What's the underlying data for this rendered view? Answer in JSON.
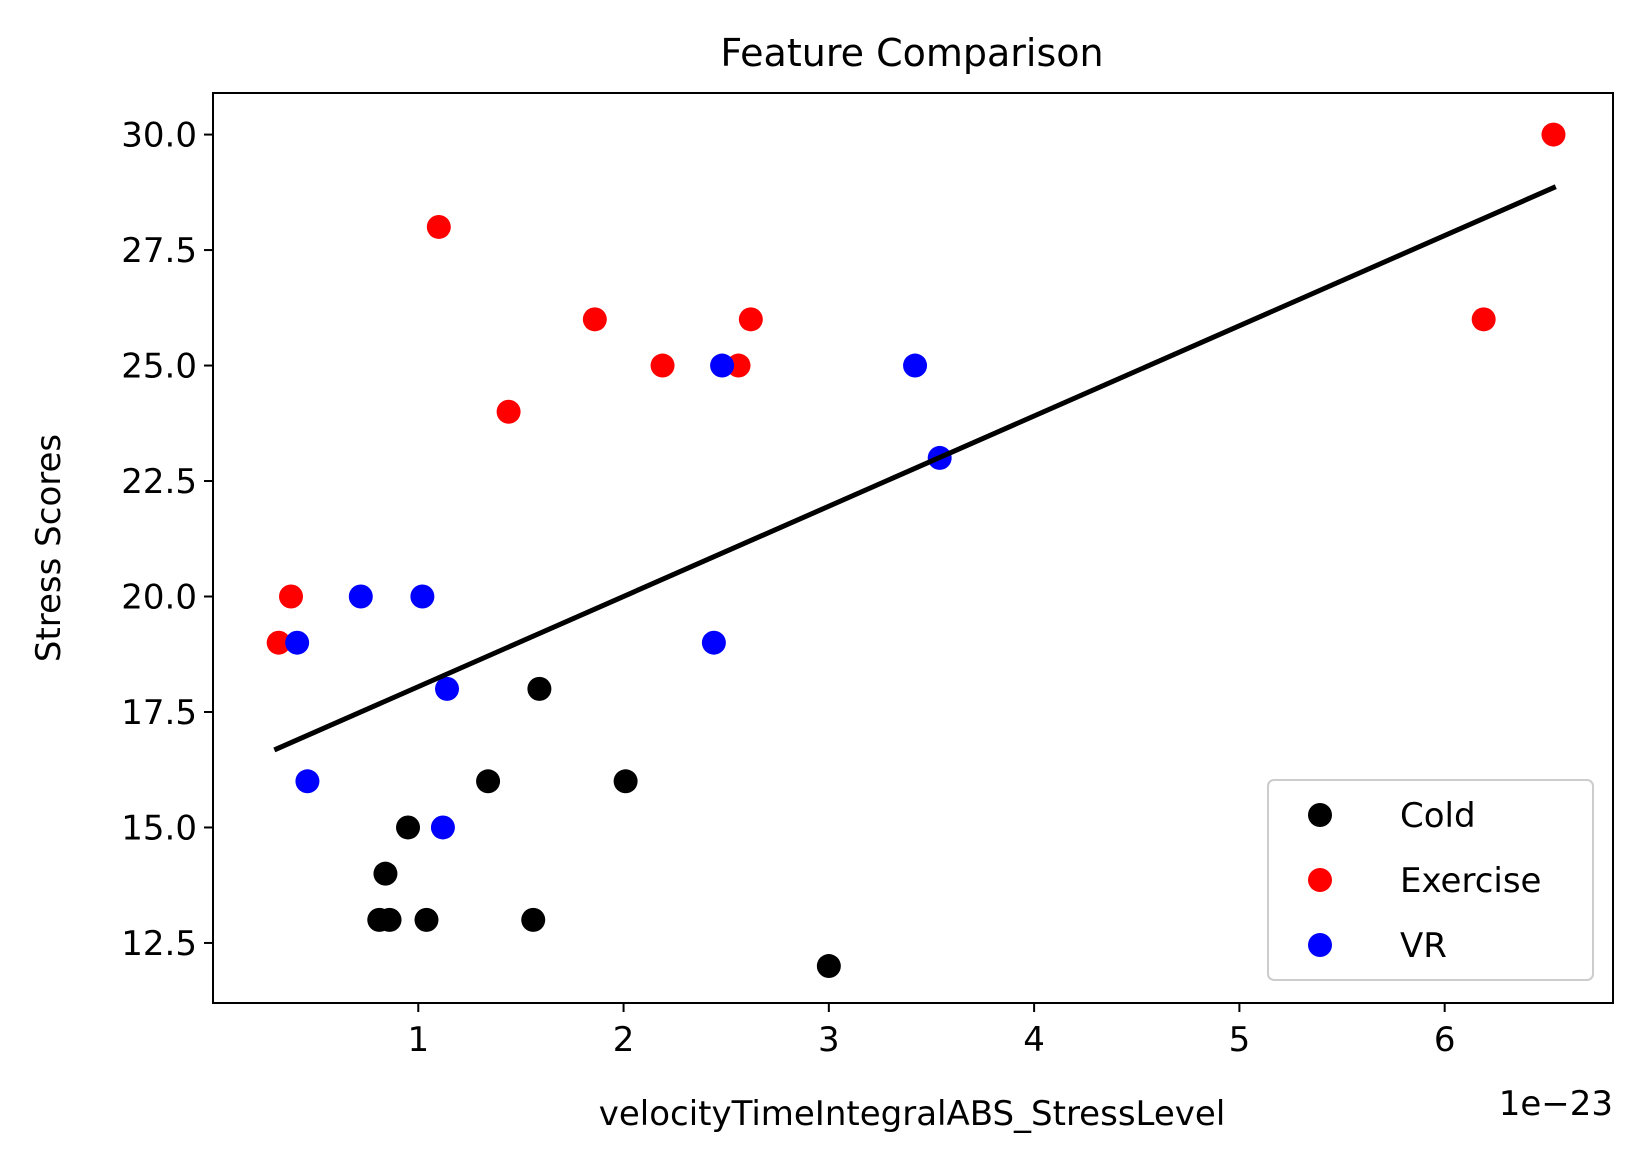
{
  "chart_data": {
    "type": "scatter",
    "title": "Feature Comparison",
    "xlabel": "velocityTimeIntegralABS_StressLevel",
    "ylabel": "Stress Scores",
    "x_offset_label": "1e−23",
    "x_scale_note": "x values shown in units of 1e-23",
    "xlim": [
      0.0,
      6.82
    ],
    "ylim": [
      11.2,
      30.9
    ],
    "x_ticks": [
      1,
      2,
      3,
      4,
      5,
      6
    ],
    "x_tick_labels": [
      "1",
      "2",
      "3",
      "4",
      "5",
      "6"
    ],
    "y_ticks": [
      12.5,
      15.0,
      17.5,
      20.0,
      22.5,
      25.0,
      27.5,
      30.0
    ],
    "y_tick_labels": [
      "12.5",
      "15.0",
      "17.5",
      "20.0",
      "22.5",
      "25.0",
      "27.5",
      "30.0"
    ],
    "grid": false,
    "legend_position": "lower-right",
    "series": [
      {
        "name": "Cold",
        "color": "#000000",
        "points": [
          [
            0.81,
            13
          ],
          [
            0.86,
            13
          ],
          [
            0.84,
            14
          ],
          [
            0.95,
            15
          ],
          [
            1.04,
            13
          ],
          [
            1.34,
            16
          ],
          [
            1.56,
            13
          ],
          [
            1.59,
            18
          ],
          [
            2.01,
            16
          ],
          [
            3.0,
            12
          ]
        ]
      },
      {
        "name": "Exercise",
        "color": "#ff0000",
        "points": [
          [
            0.32,
            19
          ],
          [
            0.38,
            20
          ],
          [
            1.1,
            28
          ],
          [
            1.44,
            24
          ],
          [
            1.86,
            26
          ],
          [
            2.19,
            25
          ],
          [
            2.56,
            25
          ],
          [
            2.62,
            26
          ],
          [
            6.19,
            26
          ],
          [
            6.53,
            30
          ]
        ]
      },
      {
        "name": "VR",
        "color": "#0000ff",
        "points": [
          [
            0.41,
            19
          ],
          [
            0.46,
            16
          ],
          [
            0.72,
            20
          ],
          [
            1.02,
            20
          ],
          [
            1.12,
            15
          ],
          [
            1.14,
            18
          ],
          [
            2.44,
            19
          ],
          [
            2.48,
            25
          ],
          [
            3.42,
            25
          ],
          [
            3.54,
            23
          ]
        ]
      }
    ],
    "fit_line": {
      "color": "#000000",
      "points": [
        [
          0.31,
          16.7
        ],
        [
          6.53,
          28.85
        ]
      ]
    }
  }
}
